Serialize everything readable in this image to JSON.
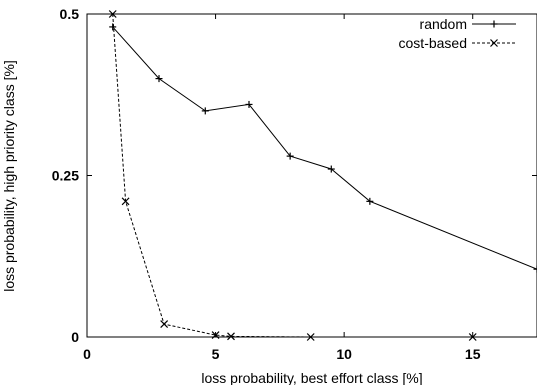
{
  "chart_data": {
    "type": "line",
    "title": "",
    "xlabel": "loss probability, best effort class [%]",
    "ylabel": "loss probability, high priority class [%]",
    "xlim": [
      0,
      17.5
    ],
    "ylim": [
      0,
      0.5
    ],
    "xticks": [
      0,
      5,
      10,
      15
    ],
    "xtick_labels": [
      "0",
      "5",
      "10",
      "15"
    ],
    "yticks": [
      0,
      0.25,
      0.5
    ],
    "ytick_labels": [
      "0",
      "0.25",
      "0.5"
    ],
    "grid": false,
    "legend_position": "top-right",
    "series": [
      {
        "name": "random",
        "marker": "plus",
        "line": "solid",
        "color": "#000000",
        "x": [
          1.0,
          2.8,
          4.6,
          6.3,
          7.9,
          9.5,
          11.0,
          17.5
        ],
        "y": [
          0.48,
          0.4,
          0.35,
          0.36,
          0.28,
          0.26,
          0.21,
          0.105
        ]
      },
      {
        "name": "cost-based",
        "marker": "x",
        "line": "dashed",
        "color": "#000000",
        "x": [
          1.0,
          1.5,
          3.0,
          5.0,
          5.6,
          8.7,
          15.0
        ],
        "y": [
          0.5,
          0.21,
          0.02,
          0.003,
          0.001,
          0.0,
          0.0
        ]
      }
    ]
  }
}
